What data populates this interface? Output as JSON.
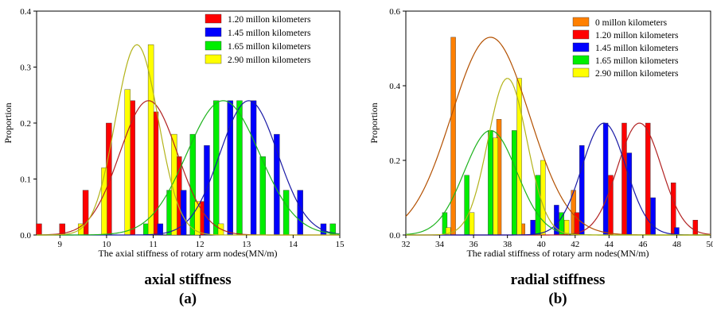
{
  "chart_data": [
    {
      "type": "bar",
      "panel": "a",
      "caption": "axial stiffness",
      "label": "(a)",
      "xlabel": "The axial stiffness of rotary arm nodes(MN/m)",
      "ylabel": "Proportion",
      "xlim": [
        8.5,
        15
      ],
      "ylim": [
        0,
        0.4
      ],
      "xticks": [
        "9",
        "10",
        "11",
        "12",
        "13",
        "14",
        "15"
      ],
      "yticks": [
        "0.0",
        "0.1",
        "0.2",
        "0.3",
        "0.4"
      ],
      "legend_position": "top-right",
      "series": [
        {
          "name": "1.20 millon kilometers",
          "color": "#ff0000",
          "curve_color": "#b22222",
          "fit": {
            "mean": 10.9,
            "sd": 0.62,
            "peak": 0.24
          },
          "bars": [
            [
              8.55,
              0.02
            ],
            [
              9.05,
              0.02
            ],
            [
              9.55,
              0.08
            ],
            [
              10.05,
              0.2
            ],
            [
              10.55,
              0.24
            ],
            [
              11.05,
              0.22
            ],
            [
              11.55,
              0.14
            ],
            [
              12.05,
              0.06
            ]
          ]
        },
        {
          "name": "1.45 millon kilometers",
          "color": "#0000ff",
          "curve_color": "#1a1aa6",
          "fit": {
            "mean": 13.05,
            "sd": 0.62,
            "peak": 0.24
          },
          "bars": [
            [
              11.15,
              0.02
            ],
            [
              11.65,
              0.08
            ],
            [
              12.15,
              0.16
            ],
            [
              12.65,
              0.24
            ],
            [
              13.15,
              0.24
            ],
            [
              13.65,
              0.18
            ],
            [
              14.15,
              0.08
            ],
            [
              14.65,
              0.02
            ]
          ]
        },
        {
          "name": "1.65 millon kilometers",
          "color": "#00ee00",
          "curve_color": "#1db31d",
          "fit": {
            "mean": 12.5,
            "sd": 0.78,
            "peak": 0.24
          },
          "bars": [
            [
              10.85,
              0.02
            ],
            [
              11.35,
              0.08
            ],
            [
              11.85,
              0.18
            ],
            [
              12.35,
              0.24
            ],
            [
              12.85,
              0.24
            ],
            [
              13.35,
              0.14
            ],
            [
              13.85,
              0.08
            ],
            [
              14.85,
              0.02
            ]
          ]
        },
        {
          "name": "2.90 millon kilometers",
          "color": "#ffff00",
          "curve_color": "#b3b31a",
          "fit": {
            "mean": 10.65,
            "sd": 0.46,
            "peak": 0.34
          },
          "bars": [
            [
              9.45,
              0.02
            ],
            [
              9.95,
              0.12
            ],
            [
              10.45,
              0.26
            ],
            [
              10.95,
              0.34
            ],
            [
              11.45,
              0.18
            ],
            [
              11.95,
              0.06
            ],
            [
              12.45,
              0.02
            ]
          ]
        }
      ]
    },
    {
      "type": "bar",
      "panel": "b",
      "caption": "radial stiffness",
      "label": "(b)",
      "xlabel": "The radial stiffness of rotary arm nodes(MN/m)",
      "ylabel": "Proportion",
      "xlim": [
        32,
        50
      ],
      "ylim": [
        0,
        0.6
      ],
      "xticks": [
        "32",
        "34",
        "36",
        "38",
        "40",
        "42",
        "44",
        "46",
        "48",
        "50"
      ],
      "yticks": [
        "0.0",
        "0.2",
        "0.4",
        "0.6"
      ],
      "legend_position": "top-right",
      "series": [
        {
          "name": "0 millon kilometers",
          "color": "#ff8000",
          "curve_color": "#b35000",
          "fit": {
            "mean": 37.0,
            "sd": 2.3,
            "peak": 0.53
          },
          "bars": [
            [
              34.8,
              0.53
            ],
            [
              37.5,
              0.31
            ],
            [
              38.9,
              0.03
            ],
            [
              41.9,
              0.12
            ]
          ]
        },
        {
          "name": "1.20 millon kilometers",
          "color": "#ff0000",
          "curve_color": "#b22222",
          "fit": {
            "mean": 45.8,
            "sd": 1.3,
            "peak": 0.3
          },
          "bars": [
            [
              42.1,
              0.06
            ],
            [
              44.1,
              0.16
            ],
            [
              44.9,
              0.3
            ],
            [
              46.3,
              0.3
            ],
            [
              47.8,
              0.14
            ],
            [
              49.1,
              0.04
            ]
          ]
        },
        {
          "name": "1.45 millon kilometers",
          "color": "#0000ff",
          "curve_color": "#1a1aa6",
          "fit": {
            "mean": 43.7,
            "sd": 1.3,
            "peak": 0.3
          },
          "bars": [
            [
              39.5,
              0.04
            ],
            [
              40.9,
              0.08
            ],
            [
              42.4,
              0.24
            ],
            [
              43.8,
              0.3
            ],
            [
              45.2,
              0.22
            ],
            [
              46.6,
              0.1
            ],
            [
              48.0,
              0.02
            ]
          ]
        },
        {
          "name": "1.65 millon kilometers",
          "color": "#00ee00",
          "curve_color": "#1db31d",
          "fit": {
            "mean": 37.0,
            "sd": 1.55,
            "peak": 0.28
          },
          "bars": [
            [
              34.3,
              0.06
            ],
            [
              35.6,
              0.16
            ],
            [
              37.0,
              0.28
            ],
            [
              38.4,
              0.28
            ],
            [
              39.8,
              0.16
            ],
            [
              41.2,
              0.06
            ]
          ]
        },
        {
          "name": "2.90 millon kilometers",
          "color": "#ffff00",
          "curve_color": "#b3b31a",
          "fit": {
            "mean": 38.0,
            "sd": 1.15,
            "peak": 0.42
          },
          "bars": [
            [
              34.5,
              0.02
            ],
            [
              35.9,
              0.06
            ],
            [
              37.3,
              0.26
            ],
            [
              38.7,
              0.42
            ],
            [
              40.1,
              0.2
            ],
            [
              41.5,
              0.04
            ]
          ]
        }
      ]
    }
  ]
}
